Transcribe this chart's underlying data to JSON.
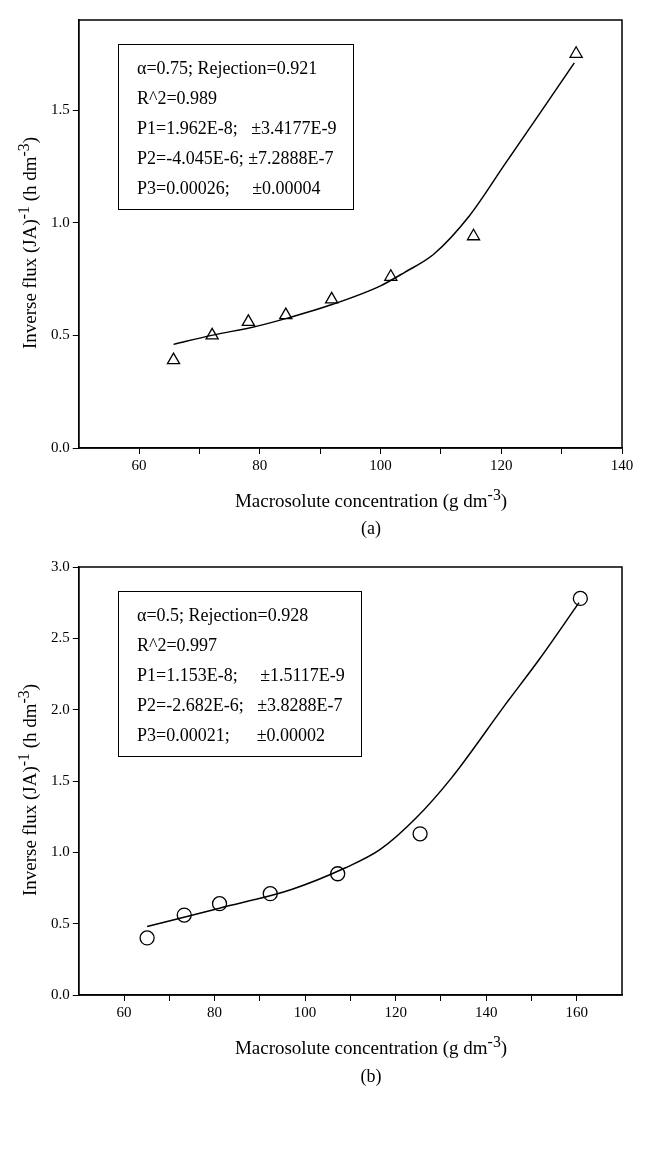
{
  "chart_data": [
    {
      "type": "scatter",
      "title": "(a)",
      "xlabel": "Macrosolute concentration (g dm$^{-3}$)",
      "ylabel": "Inverse flux (JA)$^{-1}$ (h dm$^{-3}$)",
      "annotations": [
        "α=0.75; Rejection=0.921",
        "R^2=0.989",
        "P1=1.962E-8;   ±3.4177E-9",
        "P2=-4.045E-6; ±7.2888E-7",
        "P3=0.00026;     ±0.00004"
      ],
      "xlim": [
        50,
        140
      ],
      "xticks": [
        60,
        {
          "value": 70,
          "label": null
        },
        80,
        {
          "value": 90,
          "label": null
        },
        100,
        {
          "value": 110,
          "label": null
        },
        120,
        {
          "value": 130,
          "label": null
        },
        140
      ],
      "ylim": [
        0,
        1.9
      ],
      "yticks": [
        {
          "value": 0,
          "label": "0.0"
        },
        0.5,
        {
          "value": 1,
          "label": "1.0"
        },
        1.5
      ],
      "grid": false,
      "legend": false,
      "series": [
        {
          "marker": "triangle",
          "color": "#000000",
          "x": [
            65.7,
            72.1,
            78.1,
            84.3,
            91.9,
            101.7,
            115.4,
            132.4
          ],
          "values": [
            0.39,
            0.5,
            0.56,
            0.59,
            0.66,
            0.76,
            0.94,
            1.75
          ]
        },
        {
          "type": "line",
          "marker": "none",
          "line_style": "solid",
          "color": "#000000",
          "x": [
            65.7,
            72,
            79.4,
            85,
            91.2,
            100,
            104,
            108.8,
            114.7,
            120.6,
            126.5,
            132.1
          ],
          "values": [
            0.46,
            0.5,
            0.54,
            0.58,
            0.63,
            0.72,
            0.78,
            0.86,
            1.03,
            1.26,
            1.49,
            1.71
          ]
        }
      ]
    },
    {
      "type": "scatter",
      "title": "(b)",
      "xlabel": "Macrosolute concentration (g dm$^{-3}$)",
      "ylabel": "Inverse flux (JA)$^{-1}$ (h dm$^{-3}$)",
      "annotations": [
        "α=0.5; Rejection=0.928",
        "R^2=0.997",
        "P1=1.153E-8;     ±1.5117E-9",
        "P2=-2.682E-6;   ±3.8288E-7",
        "P3=0.00021;      ±0.00002"
      ],
      "xlim": [
        50,
        170
      ],
      "xticks": [
        60,
        {
          "value": 70,
          "label": null
        },
        80,
        {
          "value": 90,
          "label": null
        },
        100,
        {
          "value": 110,
          "label": null
        },
        120,
        {
          "value": 130,
          "label": null
        },
        140,
        {
          "value": 150,
          "label": null
        },
        160
      ],
      "ylim": [
        0,
        3
      ],
      "yticks": [
        {
          "value": 0,
          "label": "0.0"
        },
        0.5,
        {
          "value": 1,
          "label": "1.0"
        },
        1.5,
        {
          "value": 2,
          "label": "2.0"
        },
        2.5,
        {
          "value": 3,
          "label": "3.0"
        }
      ],
      "grid": false,
      "legend": false,
      "series": [
        {
          "marker": "circle",
          "color": "#000000",
          "x": [
            65.1,
            73.3,
            81.1,
            92.3,
            107.2,
            125.4,
            160.8
          ],
          "values": [
            0.4,
            0.56,
            0.64,
            0.71,
            0.85,
            1.13,
            2.78
          ]
        },
        {
          "type": "line",
          "marker": "none",
          "line_style": "solid",
          "color": "#000000",
          "x": [
            65.1,
            81.3,
            97,
            108.8,
            116.6,
            124.5,
            132.3,
            144.1,
            151.9,
            160.5
          ],
          "values": [
            0.48,
            0.61,
            0.74,
            0.89,
            1.02,
            1.24,
            1.52,
            2.03,
            2.36,
            2.75
          ]
        }
      ]
    }
  ]
}
